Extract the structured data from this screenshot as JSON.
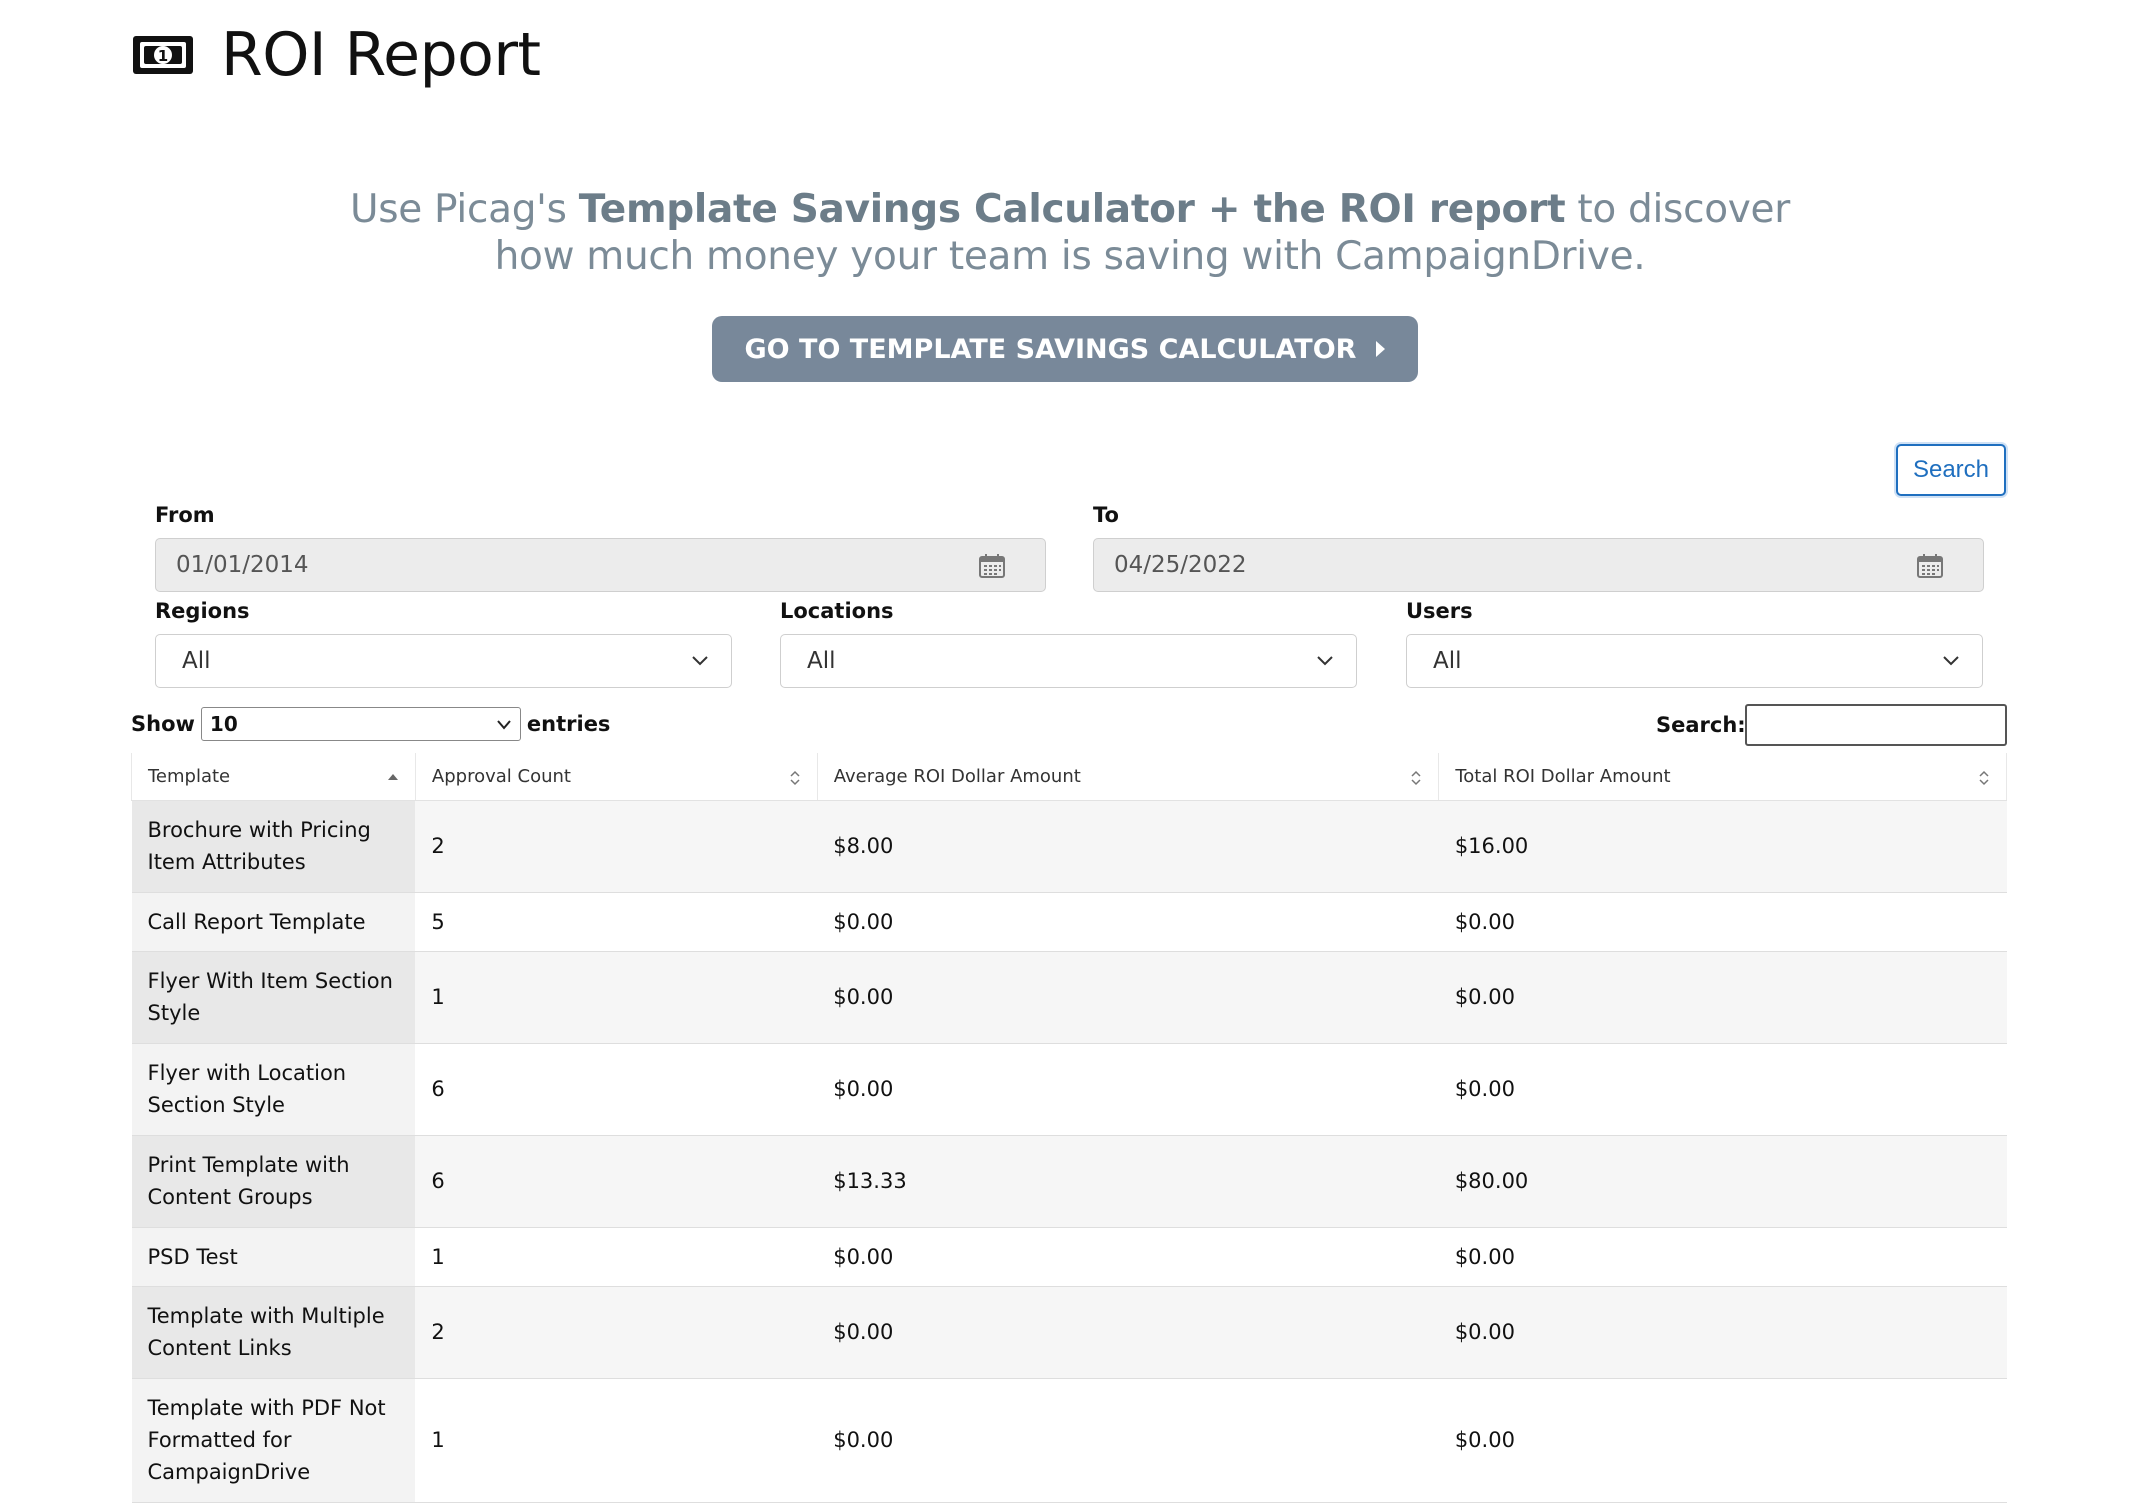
{
  "header": {
    "title": "ROI Report",
    "icon": "money-bill-icon"
  },
  "promo": {
    "line1_pre": "Use Picag's ",
    "line1_bold": "Template Savings Calculator + the ROI report",
    "line1_post": " to discover",
    "line2": "how much money your team is saving with CampaignDrive.",
    "button_label": "GO TO TEMPLATE SAVINGS CALCULATOR"
  },
  "filters": {
    "search_button": "Search",
    "from_label": "From",
    "from_value": "01/01/2014",
    "to_label": "To",
    "to_value": "04/25/2022",
    "regions_label": "Regions",
    "regions_value": "All",
    "locations_label": "Locations",
    "locations_value": "All",
    "users_label": "Users",
    "users_value": "All"
  },
  "table_controls": {
    "show_label": "Show",
    "length_value": "10",
    "entries_label": "entries",
    "search_label": "Search:"
  },
  "table": {
    "columns": [
      "Template",
      "Approval Count",
      "Average ROI Dollar Amount",
      "Total ROI Dollar Amount"
    ],
    "rows": [
      {
        "template": "Brochure with Pricing Item Attributes",
        "count": "2",
        "avg": "$8.00",
        "total": "$16.00"
      },
      {
        "template": "Call Report Template",
        "count": "5",
        "avg": "$0.00",
        "total": "$0.00"
      },
      {
        "template": "Flyer With Item Section Style",
        "count": "1",
        "avg": "$0.00",
        "total": "$0.00"
      },
      {
        "template": "Flyer with Location Section Style",
        "count": "6",
        "avg": "$0.00",
        "total": "$0.00"
      },
      {
        "template": "Print Template with Content Groups",
        "count": "6",
        "avg": "$13.33",
        "total": "$80.00"
      },
      {
        "template": "PSD Test",
        "count": "1",
        "avg": "$0.00",
        "total": "$0.00"
      },
      {
        "template": "Template with Multiple Content Links",
        "count": "2",
        "avg": "$0.00",
        "total": "$0.00"
      },
      {
        "template": "Template with PDF Not Formatted for CampaignDrive",
        "count": "1",
        "avg": "$0.00",
        "total": "$0.00"
      }
    ]
  }
}
